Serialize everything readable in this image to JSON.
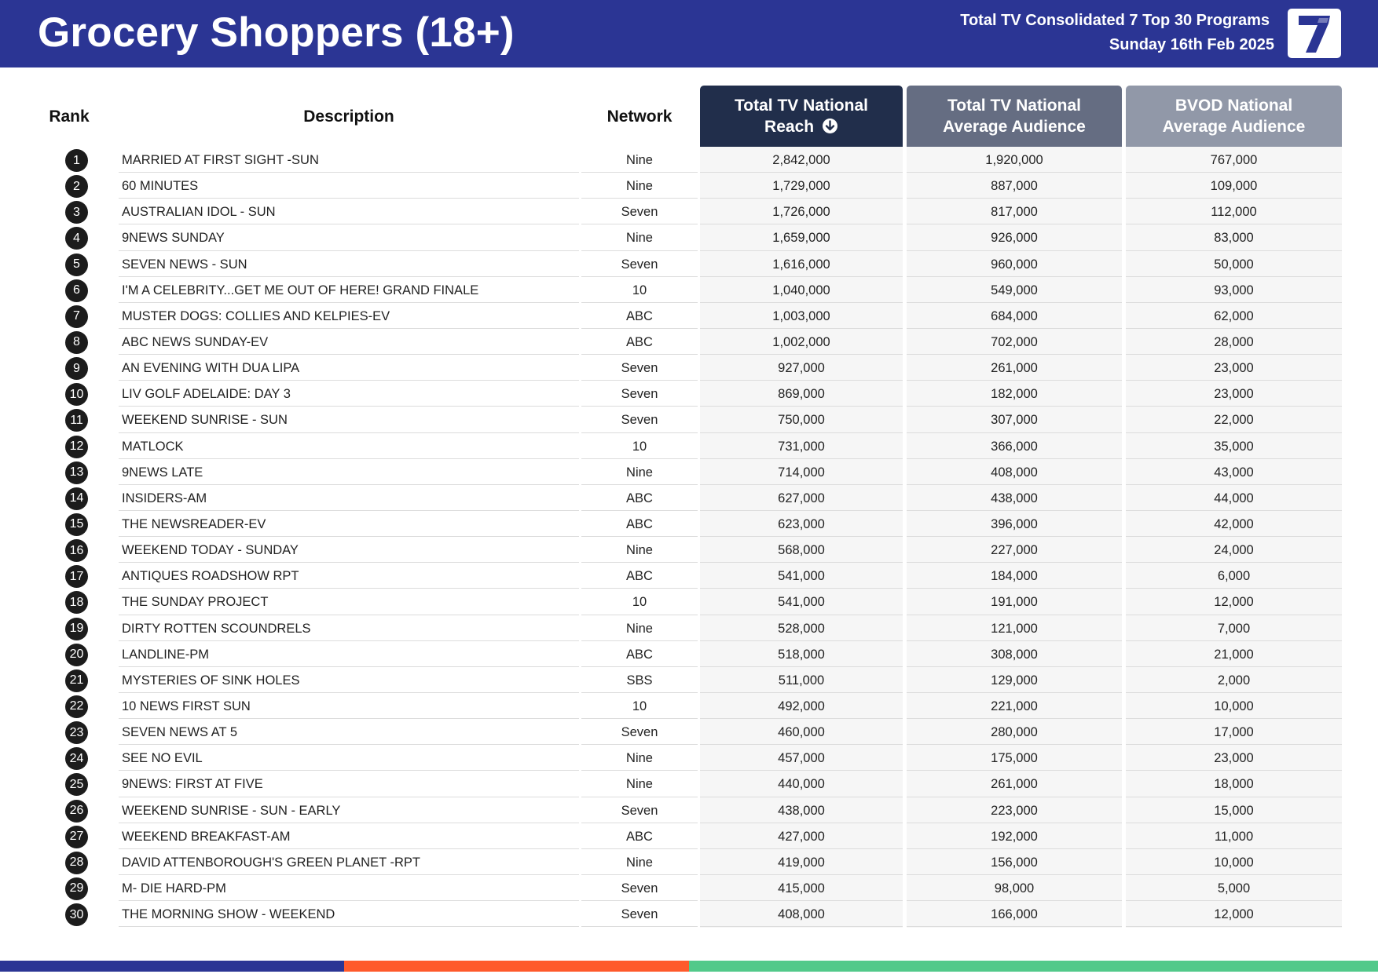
{
  "header": {
    "title": "Grocery Shoppers (18+)",
    "subtitle_line1": "Total TV Consolidated 7 Top 30 Programs",
    "subtitle_line2": "Sunday 16th Feb 2025",
    "logo_text": "7",
    "colors": {
      "header_bg": "#2b3594",
      "logo_blue": "#2b3594"
    }
  },
  "columns": {
    "rank": "Rank",
    "description": "Description",
    "network": "Network",
    "reach_line1": "Total TV National",
    "reach_line2": "Reach",
    "avg_line1": "Total TV National",
    "avg_line2": "Average Audience",
    "bvod_line1": "BVOD National",
    "bvod_line2": "Average Audience",
    "sort_icon": "arrow-down-circle-icon"
  },
  "rows": [
    {
      "rank": "1",
      "description": "MARRIED AT FIRST SIGHT -SUN",
      "network": "Nine",
      "reach": "2,842,000",
      "avg": "1,920,000",
      "bvod": "767,000"
    },
    {
      "rank": "2",
      "description": "60 MINUTES",
      "network": "Nine",
      "reach": "1,729,000",
      "avg": "887,000",
      "bvod": "109,000"
    },
    {
      "rank": "3",
      "description": "AUSTRALIAN IDOL - SUN",
      "network": "Seven",
      "reach": "1,726,000",
      "avg": "817,000",
      "bvod": "112,000"
    },
    {
      "rank": "4",
      "description": "9NEWS SUNDAY",
      "network": "Nine",
      "reach": "1,659,000",
      "avg": "926,000",
      "bvod": "83,000"
    },
    {
      "rank": "5",
      "description": "SEVEN NEWS - SUN",
      "network": "Seven",
      "reach": "1,616,000",
      "avg": "960,000",
      "bvod": "50,000"
    },
    {
      "rank": "6",
      "description": "I'M A CELEBRITY...GET ME OUT OF HERE! GRAND FINALE",
      "network": "10",
      "reach": "1,040,000",
      "avg": "549,000",
      "bvod": "93,000"
    },
    {
      "rank": "7",
      "description": "MUSTER DOGS: COLLIES AND KELPIES-EV",
      "network": "ABC",
      "reach": "1,003,000",
      "avg": "684,000",
      "bvod": "62,000"
    },
    {
      "rank": "8",
      "description": "ABC NEWS SUNDAY-EV",
      "network": "ABC",
      "reach": "1,002,000",
      "avg": "702,000",
      "bvod": "28,000"
    },
    {
      "rank": "9",
      "description": "AN EVENING WITH DUA LIPA",
      "network": "Seven",
      "reach": "927,000",
      "avg": "261,000",
      "bvod": "23,000"
    },
    {
      "rank": "10",
      "description": "LIV GOLF ADELAIDE: DAY 3",
      "network": "Seven",
      "reach": "869,000",
      "avg": "182,000",
      "bvod": "23,000"
    },
    {
      "rank": "11",
      "description": "WEEKEND SUNRISE - SUN",
      "network": "Seven",
      "reach": "750,000",
      "avg": "307,000",
      "bvod": "22,000"
    },
    {
      "rank": "12",
      "description": "MATLOCK",
      "network": "10",
      "reach": "731,000",
      "avg": "366,000",
      "bvod": "35,000"
    },
    {
      "rank": "13",
      "description": "9NEWS LATE",
      "network": "Nine",
      "reach": "714,000",
      "avg": "408,000",
      "bvod": "43,000"
    },
    {
      "rank": "14",
      "description": "INSIDERS-AM",
      "network": "ABC",
      "reach": "627,000",
      "avg": "438,000",
      "bvod": "44,000"
    },
    {
      "rank": "15",
      "description": "THE NEWSREADER-EV",
      "network": "ABC",
      "reach": "623,000",
      "avg": "396,000",
      "bvod": "42,000"
    },
    {
      "rank": "16",
      "description": "WEEKEND TODAY - SUNDAY",
      "network": "Nine",
      "reach": "568,000",
      "avg": "227,000",
      "bvod": "24,000"
    },
    {
      "rank": "17",
      "description": "ANTIQUES ROADSHOW RPT",
      "network": "ABC",
      "reach": "541,000",
      "avg": "184,000",
      "bvod": "6,000"
    },
    {
      "rank": "18",
      "description": "THE SUNDAY PROJECT",
      "network": "10",
      "reach": "541,000",
      "avg": "191,000",
      "bvod": "12,000"
    },
    {
      "rank": "19",
      "description": "DIRTY ROTTEN SCOUNDRELS",
      "network": "Nine",
      "reach": "528,000",
      "avg": "121,000",
      "bvod": "7,000"
    },
    {
      "rank": "20",
      "description": "LANDLINE-PM",
      "network": "ABC",
      "reach": "518,000",
      "avg": "308,000",
      "bvod": "21,000"
    },
    {
      "rank": "21",
      "description": "MYSTERIES OF SINK HOLES",
      "network": "SBS",
      "reach": "511,000",
      "avg": "129,000",
      "bvod": "2,000"
    },
    {
      "rank": "22",
      "description": "10 NEWS FIRST SUN",
      "network": "10",
      "reach": "492,000",
      "avg": "221,000",
      "bvod": "10,000"
    },
    {
      "rank": "23",
      "description": "SEVEN NEWS AT 5",
      "network": "Seven",
      "reach": "460,000",
      "avg": "280,000",
      "bvod": "17,000"
    },
    {
      "rank": "24",
      "description": "SEE NO EVIL",
      "network": "Nine",
      "reach": "457,000",
      "avg": "175,000",
      "bvod": "23,000"
    },
    {
      "rank": "25",
      "description": "9NEWS: FIRST AT FIVE",
      "network": "Nine",
      "reach": "440,000",
      "avg": "261,000",
      "bvod": "18,000"
    },
    {
      "rank": "26",
      "description": "WEEKEND SUNRISE - SUN - EARLY",
      "network": "Seven",
      "reach": "438,000",
      "avg": "223,000",
      "bvod": "15,000"
    },
    {
      "rank": "27",
      "description": "WEEKEND BREAKFAST-AM",
      "network": "ABC",
      "reach": "427,000",
      "avg": "192,000",
      "bvod": "11,000"
    },
    {
      "rank": "28",
      "description": "DAVID ATTENBOROUGH'S GREEN PLANET -RPT",
      "network": "Nine",
      "reach": "419,000",
      "avg": "156,000",
      "bvod": "10,000"
    },
    {
      "rank": "29",
      "description": "M- DIE HARD-PM",
      "network": "Seven",
      "reach": "415,000",
      "avg": "98,000",
      "bvod": "5,000"
    },
    {
      "rank": "30",
      "description": "THE MORNING SHOW - WEEKEND",
      "network": "Seven",
      "reach": "408,000",
      "avg": "166,000",
      "bvod": "12,000"
    }
  ],
  "footer": {
    "colors": [
      "#2b3594",
      "#ff5a2b",
      "#52c98a"
    ]
  }
}
